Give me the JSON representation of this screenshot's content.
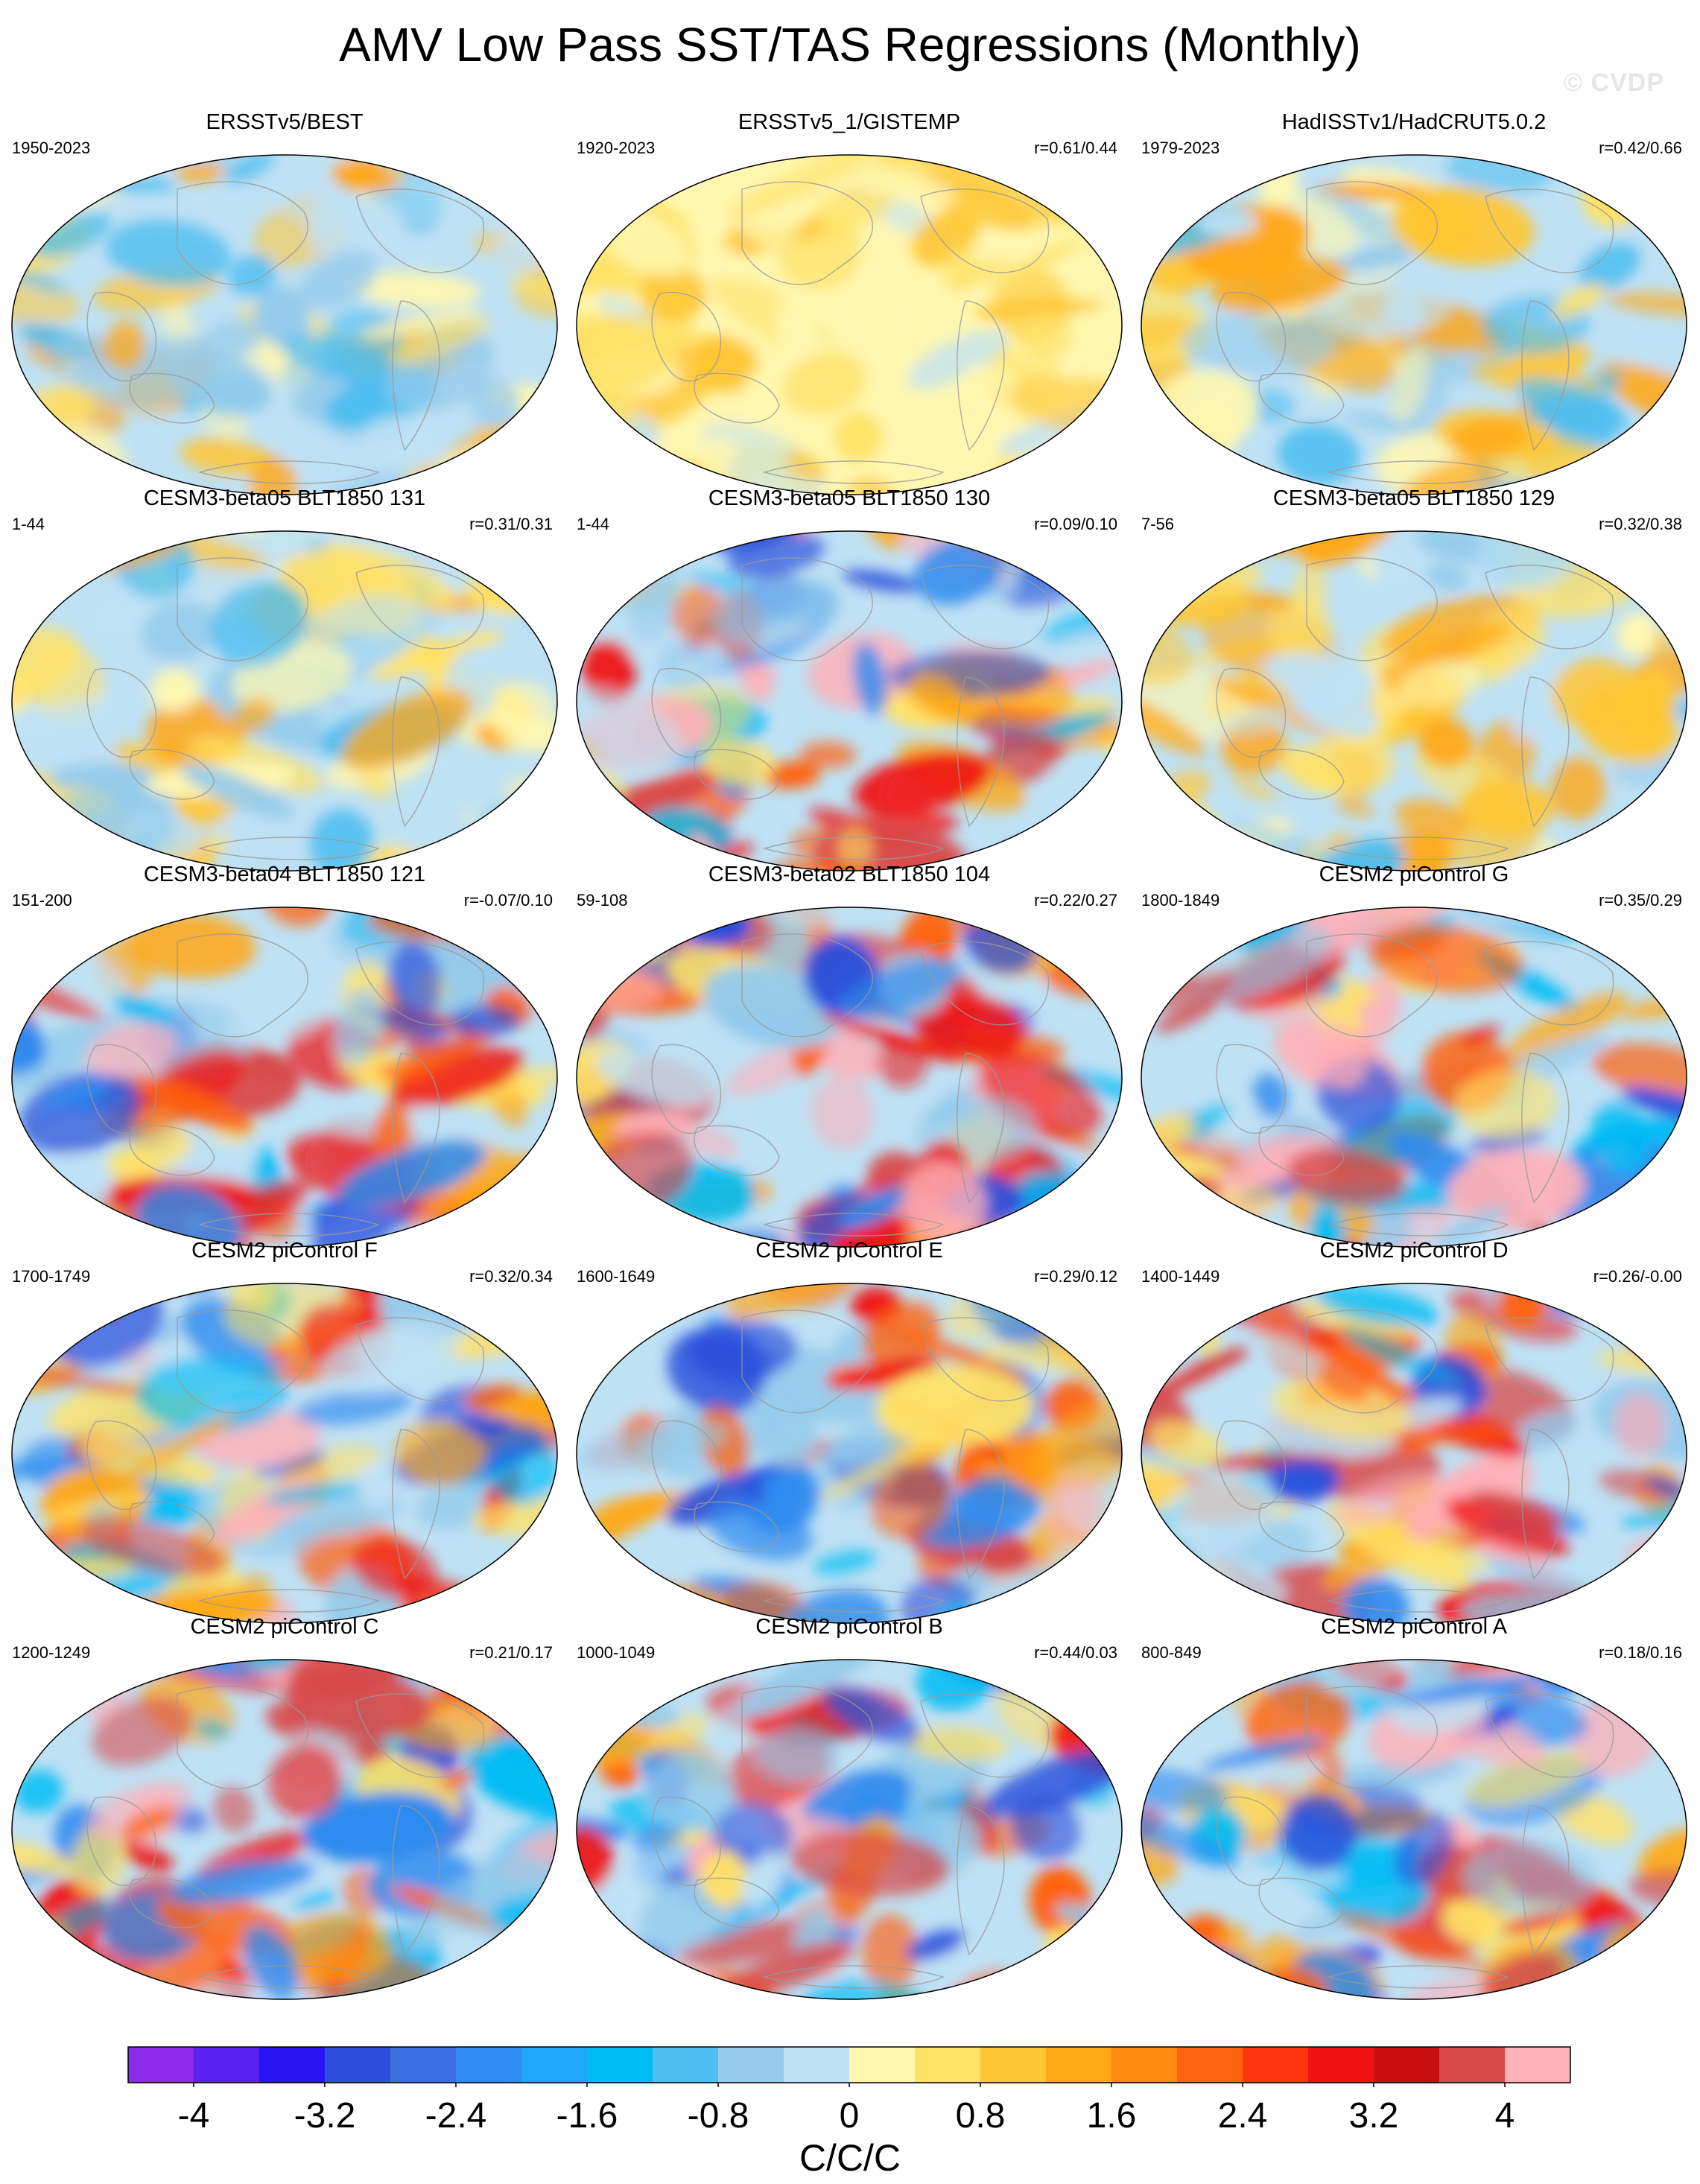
{
  "title": "AMV Low Pass SST/TAS Regressions (Monthly)",
  "watermark": "© CVDP",
  "colorbar": {
    "units": "C/C/C",
    "tick_labels": [
      "-4",
      "-3.2",
      "-2.4",
      "-1.6",
      "-0.8",
      "0",
      "0.8",
      "1.6",
      "2.4",
      "3.2",
      "4"
    ],
    "colors": [
      "#8a2be8",
      "#5b22ee",
      "#2815f2",
      "#2b4fdc",
      "#3b6ee0",
      "#2f8bef",
      "#1ea7f8",
      "#00bcf5",
      "#4fbef0",
      "#95cbec",
      "#bfe1f4",
      "#fff7b0",
      "#ffe166",
      "#ffc633",
      "#ffa816",
      "#ff8a12",
      "#ff630f",
      "#ff3512",
      "#f01212",
      "#c80f0f",
      "#d94848",
      "#ffb0b8"
    ]
  },
  "panels": [
    {
      "title": "ERSSTv5/BEST",
      "left": "1950-2023",
      "right": "",
      "seed": 11,
      "palette": "mild"
    },
    {
      "title": "ERSSTv5_1/GISTEMP",
      "left": "1920-2023",
      "right": "r=0.61/0.44",
      "seed": 23,
      "palette": "warm"
    },
    {
      "title": "HadISSTv1/HadCRUT5.0.2",
      "left": "1979-2023",
      "right": "r=0.42/0.66",
      "seed": 37,
      "palette": "mild"
    },
    {
      "title": "CESM3-beta05 BLT1850 131",
      "left": "1-44",
      "right": "r=0.31/0.31",
      "seed": 41,
      "palette": "mild"
    },
    {
      "title": "CESM3-beta05 BLT1850 130",
      "left": "1-44",
      "right": "r=0.09/0.10",
      "seed": 53,
      "palette": "strong"
    },
    {
      "title": "CESM3-beta05 BLT1850 129",
      "left": "7-56",
      "right": "r=0.32/0.38",
      "seed": 67,
      "palette": "mild"
    },
    {
      "title": "CESM3-beta04 BLT1850 121",
      "left": "151-200",
      "right": "r=-0.07/0.10",
      "seed": 71,
      "palette": "strong"
    },
    {
      "title": "CESM3-beta02 BLT1850 104",
      "left": "59-108",
      "right": "r=0.22/0.27",
      "seed": 83,
      "palette": "strong"
    },
    {
      "title": "CESM2 piControl G",
      "left": "1800-1849",
      "right": "r=0.35/0.29",
      "seed": 97,
      "palette": "strong"
    },
    {
      "title": "CESM2 piControl F",
      "left": "1700-1749",
      "right": "r=0.32/0.34",
      "seed": 101,
      "palette": "strong"
    },
    {
      "title": "CESM2 piControl E",
      "left": "1600-1649",
      "right": "r=0.29/0.12",
      "seed": 113,
      "palette": "strong"
    },
    {
      "title": "CESM2 piControl D",
      "left": "1400-1449",
      "right": "r=0.26/-0.00",
      "seed": 127,
      "palette": "strong"
    },
    {
      "title": "CESM2 piControl C",
      "left": "1200-1249",
      "right": "r=0.21/0.17",
      "seed": 131,
      "palette": "strong"
    },
    {
      "title": "CESM2 piControl B",
      "left": "1000-1049",
      "right": "r=0.44/0.03",
      "seed": 149,
      "palette": "strong"
    },
    {
      "title": "CESM2 piControl A",
      "left": "800-849",
      "right": "r=0.18/0.16",
      "seed": 157,
      "palette": "strong"
    }
  ]
}
